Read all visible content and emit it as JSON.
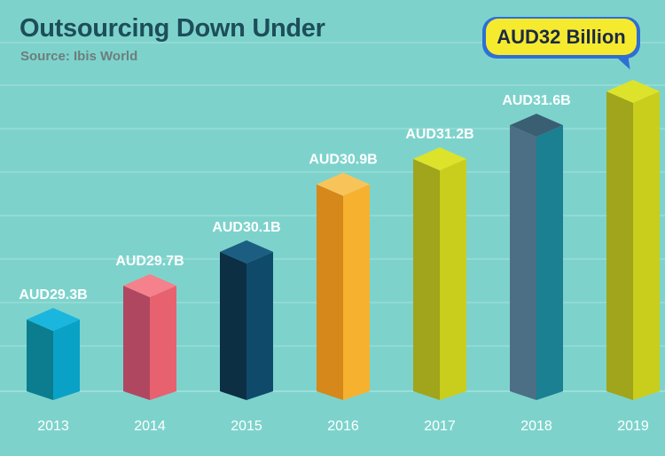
{
  "title": "Outsourcing Down Under",
  "subtitle": "Source: Ibis World",
  "callout": "AUD32 Billion",
  "colors": {
    "background": "#7dd3cc",
    "gridline": "#a8e2dd",
    "axis_label": "#ffffff",
    "data_label": "#ffffff"
  },
  "chart_data": {
    "type": "bar",
    "title": "Outsourcing Down Under",
    "subtitle": "Source: Ibis World",
    "xlabel": "",
    "ylabel": "",
    "grid": true,
    "categories": [
      "2013",
      "2014",
      "2015",
      "2016",
      "2017",
      "2018",
      "2019"
    ],
    "values": [
      29.3,
      29.7,
      30.1,
      30.9,
      31.2,
      31.6,
      32
    ],
    "data_labels": [
      "AUD29.3B",
      "AUD29.7B",
      "AUD30.1B",
      "AUD30.9B",
      "AUD31.2B",
      "AUD31.6B",
      ""
    ],
    "ylim": [
      28.45,
      32
    ],
    "bar_colors": [
      {
        "front": "#0aa1c7",
        "side": "#0b7d8f",
        "top": "#1ab6de"
      },
      {
        "front": "#e8616f",
        "side": "#b04761",
        "top": "#f4818b"
      },
      {
        "front": "#0f4a6a",
        "side": "#0c2f44",
        "top": "#1c5e82"
      },
      {
        "front": "#f6b12f",
        "side": "#d6881a",
        "top": "#f8c45a"
      },
      {
        "front": "#c9cd1c",
        "side": "#a0a51b",
        "top": "#dde32a"
      },
      {
        "front": "#1a8092",
        "side": "#4c6f86",
        "top": "#3a5f72"
      },
      {
        "front": "#c9cd1c",
        "side": "#a0a51b",
        "top": "#dde32a"
      }
    ]
  }
}
